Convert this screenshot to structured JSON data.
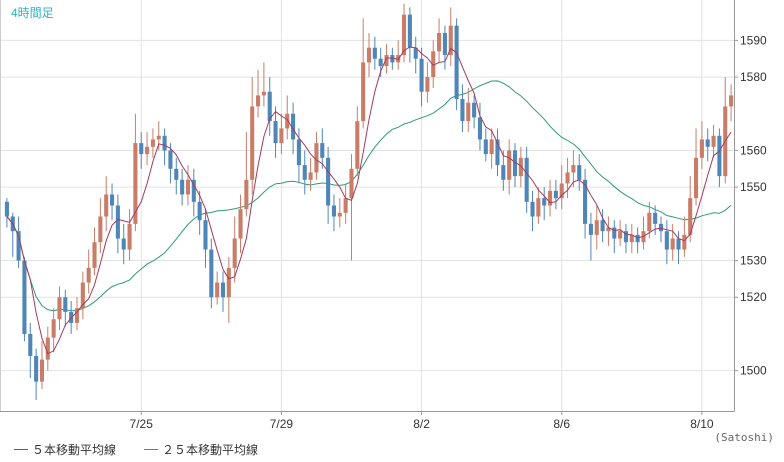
{
  "timeframe_label": "4時間足",
  "credit": "(Satoshi)",
  "colors": {
    "up": "#c97d68",
    "down": "#4f86b8",
    "ma5": "#a23b5c",
    "ma25": "#2d9b78",
    "grid": "#e2e2e2",
    "frame": "#999999",
    "axis_text": "#333333"
  },
  "legend": [
    {
      "label": "５本移動平均線",
      "color": "#a23b5c"
    },
    {
      "label": "２５本移動平均線",
      "color": "#2d9b78"
    }
  ],
  "chart_data": {
    "type": "candlestick",
    "y_axis": {
      "side": "right",
      "min": 1489,
      "max": 1601,
      "ticks": [
        1500,
        1520,
        1530,
        1550,
        1560,
        1580,
        1590
      ]
    },
    "x_axis": {
      "ticks": [
        {
          "label": "7/25",
          "bar": 23
        },
        {
          "label": "7/29",
          "bar": 47
        },
        {
          "label": "8/2",
          "bar": 71
        },
        {
          "label": "8/6",
          "bar": 95
        },
        {
          "label": "8/10",
          "bar": 119
        }
      ]
    },
    "candles": [
      [
        1546,
        1542,
        1547,
        1539
      ],
      [
        1542,
        1538,
        1543,
        1531
      ],
      [
        1538,
        1530,
        1542,
        1528
      ],
      [
        1530,
        1510,
        1531,
        1508
      ],
      [
        1510,
        1504,
        1513,
        1498
      ],
      [
        1504,
        1497,
        1506,
        1492
      ],
      [
        1497,
        1503,
        1508,
        1495
      ],
      [
        1503,
        1509,
        1512,
        1500
      ],
      [
        1509,
        1514,
        1517,
        1505
      ],
      [
        1514,
        1520,
        1523,
        1511
      ],
      [
        1520,
        1516,
        1522,
        1512
      ],
      [
        1516,
        1513,
        1519,
        1510
      ],
      [
        1513,
        1517,
        1520,
        1511
      ],
      [
        1517,
        1524,
        1527,
        1514
      ],
      [
        1524,
        1528,
        1533,
        1521
      ],
      [
        1528,
        1535,
        1539,
        1526
      ],
      [
        1535,
        1542,
        1547,
        1532
      ],
      [
        1542,
        1548,
        1553,
        1538
      ],
      [
        1548,
        1545,
        1551,
        1541
      ],
      [
        1545,
        1536,
        1548,
        1532
      ],
      [
        1536,
        1533,
        1540,
        1529
      ],
      [
        1533,
        1540,
        1544,
        1530
      ],
      [
        1540,
        1562,
        1570,
        1538
      ],
      [
        1562,
        1559,
        1565,
        1555
      ],
      [
        1559,
        1561,
        1565,
        1556
      ],
      [
        1561,
        1563,
        1566,
        1558
      ],
      [
        1563,
        1564,
        1568,
        1560
      ],
      [
        1564,
        1560,
        1566,
        1556
      ],
      [
        1560,
        1555,
        1562,
        1551
      ],
      [
        1555,
        1552,
        1558,
        1548
      ],
      [
        1552,
        1548,
        1555,
        1545
      ],
      [
        1548,
        1552,
        1556,
        1545
      ],
      [
        1552,
        1546,
        1555,
        1542
      ],
      [
        1546,
        1541,
        1549,
        1537
      ],
      [
        1541,
        1533,
        1544,
        1528
      ],
      [
        1533,
        1520,
        1536,
        1517
      ],
      [
        1520,
        1524,
        1527,
        1518
      ],
      [
        1524,
        1520,
        1527,
        1516
      ],
      [
        1520,
        1528,
        1531,
        1513
      ],
      [
        1528,
        1536,
        1542,
        1524
      ],
      [
        1536,
        1544,
        1548,
        1532
      ],
      [
        1544,
        1552,
        1565,
        1542
      ],
      [
        1552,
        1572,
        1580,
        1548
      ],
      [
        1572,
        1575,
        1582,
        1569
      ],
      [
        1575,
        1576,
        1584,
        1572
      ],
      [
        1576,
        1568,
        1580,
        1564
      ],
      [
        1568,
        1562,
        1572,
        1558
      ],
      [
        1562,
        1566,
        1570,
        1559
      ],
      [
        1566,
        1570,
        1575,
        1563
      ],
      [
        1570,
        1563,
        1573,
        1559
      ],
      [
        1563,
        1556,
        1566,
        1551
      ],
      [
        1556,
        1552,
        1560,
        1548
      ],
      [
        1552,
        1554,
        1558,
        1549
      ],
      [
        1554,
        1562,
        1565,
        1552
      ],
      [
        1562,
        1558,
        1566,
        1555
      ],
      [
        1558,
        1545,
        1561,
        1540
      ],
      [
        1545,
        1542,
        1548,
        1538
      ],
      [
        1542,
        1543,
        1547,
        1539
      ],
      [
        1543,
        1547,
        1551,
        1540
      ],
      [
        1547,
        1555,
        1559,
        1530
      ],
      [
        1555,
        1568,
        1572,
        1553
      ],
      [
        1568,
        1584,
        1596,
        1566
      ],
      [
        1584,
        1588,
        1592,
        1580
      ],
      [
        1588,
        1585,
        1591,
        1582
      ],
      [
        1585,
        1583,
        1588,
        1580
      ],
      [
        1583,
        1586,
        1589,
        1581
      ],
      [
        1586,
        1584,
        1588,
        1582
      ],
      [
        1584,
        1586,
        1590,
        1582
      ],
      [
        1586,
        1597,
        1600,
        1584
      ],
      [
        1597,
        1588,
        1599,
        1584
      ],
      [
        1588,
        1585,
        1591,
        1581
      ],
      [
        1585,
        1576,
        1588,
        1572
      ],
      [
        1576,
        1580,
        1584,
        1573
      ],
      [
        1580,
        1587,
        1590,
        1577
      ],
      [
        1587,
        1592,
        1596,
        1584
      ],
      [
        1592,
        1586,
        1594,
        1582
      ],
      [
        1586,
        1594,
        1599,
        1583
      ],
      [
        1594,
        1574,
        1596,
        1571
      ],
      [
        1574,
        1568,
        1578,
        1565
      ],
      [
        1568,
        1573,
        1577,
        1565
      ],
      [
        1573,
        1569,
        1575,
        1566
      ],
      [
        1569,
        1563,
        1573,
        1560
      ],
      [
        1563,
        1559,
        1566,
        1557
      ],
      [
        1559,
        1563,
        1566,
        1555
      ],
      [
        1563,
        1556,
        1566,
        1553
      ],
      [
        1556,
        1552,
        1560,
        1549
      ],
      [
        1552,
        1560,
        1563,
        1548
      ],
      [
        1560,
        1553,
        1562,
        1550
      ],
      [
        1553,
        1558,
        1561,
        1550
      ],
      [
        1558,
        1546,
        1561,
        1543
      ],
      [
        1546,
        1542,
        1549,
        1538
      ],
      [
        1542,
        1547,
        1550,
        1540
      ],
      [
        1547,
        1545,
        1550,
        1541
      ],
      [
        1545,
        1549,
        1552,
        1542
      ],
      [
        1549,
        1547,
        1552,
        1544
      ],
      [
        1547,
        1551,
        1556,
        1544
      ],
      [
        1551,
        1554,
        1558,
        1547
      ],
      [
        1554,
        1556,
        1560,
        1550
      ],
      [
        1556,
        1552,
        1559,
        1549
      ],
      [
        1552,
        1540,
        1555,
        1536
      ],
      [
        1540,
        1537,
        1543,
        1530
      ],
      [
        1537,
        1541,
        1545,
        1533
      ],
      [
        1541,
        1538,
        1544,
        1535
      ],
      [
        1538,
        1539,
        1542,
        1534
      ],
      [
        1539,
        1536,
        1541,
        1532
      ],
      [
        1536,
        1538,
        1541,
        1534
      ],
      [
        1538,
        1535,
        1540,
        1532
      ],
      [
        1535,
        1537,
        1540,
        1532
      ],
      [
        1537,
        1535,
        1539,
        1532
      ],
      [
        1535,
        1538,
        1542,
        1533
      ],
      [
        1538,
        1543,
        1546,
        1536
      ],
      [
        1543,
        1540,
        1545,
        1537
      ],
      [
        1540,
        1538,
        1542,
        1535
      ],
      [
        1538,
        1533,
        1541,
        1529
      ],
      [
        1533,
        1536,
        1540,
        1530
      ],
      [
        1536,
        1533,
        1538,
        1529
      ],
      [
        1533,
        1537,
        1542,
        1531
      ],
      [
        1537,
        1547,
        1553,
        1535
      ],
      [
        1547,
        1558,
        1566,
        1545
      ],
      [
        1558,
        1563,
        1568,
        1555
      ],
      [
        1563,
        1561,
        1566,
        1557
      ],
      [
        1561,
        1564,
        1567,
        1558
      ],
      [
        1564,
        1553,
        1566,
        1550
      ],
      [
        1553,
        1572,
        1580,
        1551
      ],
      [
        1572,
        1575,
        1578,
        1568
      ]
    ]
  }
}
